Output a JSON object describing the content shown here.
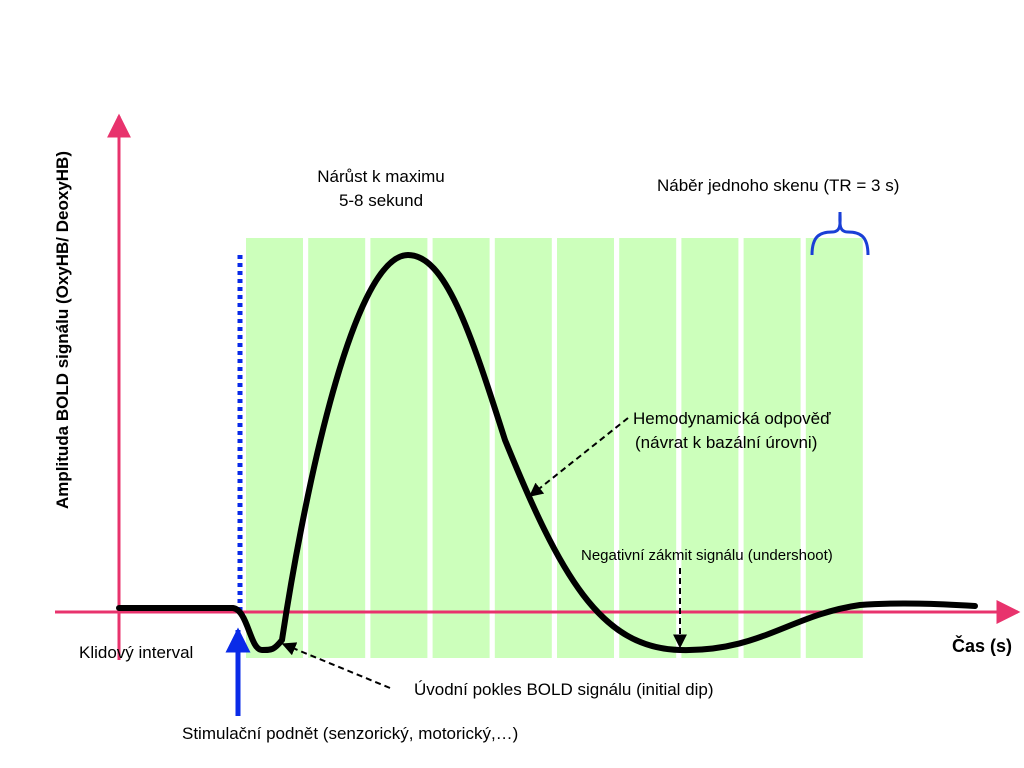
{
  "diagram": {
    "y_axis_label": "Amplituda BOLD signálu (OxyHB/ DeoxyHB)",
    "x_axis_label": "Čas (s)",
    "labels": {
      "rise_line1": "Nárůst k maximu",
      "rise_line2": "5-8 sekund",
      "scan": "Náběr jednoho skenu (TR = 3 s)",
      "hemo_line1": "Hemodynamická odpověď",
      "hemo_line2": "(návrat k bazální úrovni)",
      "undershoot": "Negativní zákmit signálu (undershoot)",
      "rest": "Klidový interval",
      "initial_dip": "Úvodní pokles BOLD signálu (initial dip)",
      "stimulus": "Stimulační podnět (senzorický, motorický,…)"
    },
    "scan_block_count": 10,
    "colors": {
      "axis": "#e8336d",
      "curve": "#000000",
      "scan_blocks": "#ccffbb",
      "stimulus": "#0a2be8",
      "brace": "#1a3fd6"
    }
  }
}
